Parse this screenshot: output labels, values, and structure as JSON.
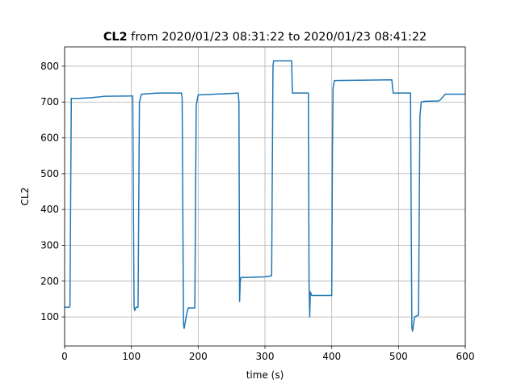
{
  "chart_data": {
    "type": "line",
    "title": [
      "CL2",
      "from 2020/01/23 08:31:22 to 2020/01/23 08:41:22"
    ],
    "xlabel": "time (s)",
    "ylabel": "CL2",
    "xlim": [
      0,
      600
    ],
    "xticks": [
      0,
      100,
      200,
      300,
      400,
      500,
      600
    ],
    "ylim": [
      19,
      854
    ],
    "yticks": [
      100,
      200,
      300,
      400,
      500,
      600,
      700,
      800
    ],
    "grid": true,
    "series": [
      {
        "color": "#1f77b4",
        "x": [
          0,
          7,
          8,
          10,
          20,
          40,
          60,
          100,
          102,
          104,
          105,
          107,
          110,
          112,
          115,
          140,
          175,
          176,
          178,
          179,
          183,
          185,
          195,
          197,
          200,
          240,
          260,
          261,
          262,
          263,
          264,
          300,
          310,
          312,
          313,
          340,
          341,
          365,
          366,
          367,
          368,
          370,
          400,
          401,
          402,
          404,
          490,
          492,
          518,
          519,
          520,
          521,
          524,
          530,
          532,
          534,
          540,
          560,
          562,
          570,
          600
        ],
        "values": [
          127,
          127,
          130,
          710,
          710,
          712,
          716,
          717,
          717,
          130,
          118,
          127,
          127,
          700,
          722,
          725,
          725,
          710,
          80,
          68,
          110,
          125,
          125,
          690,
          720,
          723,
          725,
          700,
          143,
          200,
          210,
          212,
          215,
          800,
          815,
          815,
          725,
          725,
          200,
          100,
          170,
          160,
          160,
          560,
          740,
          760,
          762,
          725,
          725,
          380,
          70,
          60,
          100,
          105,
          660,
          700,
          702,
          703,
          705,
          722,
          722
        ]
      }
    ]
  }
}
